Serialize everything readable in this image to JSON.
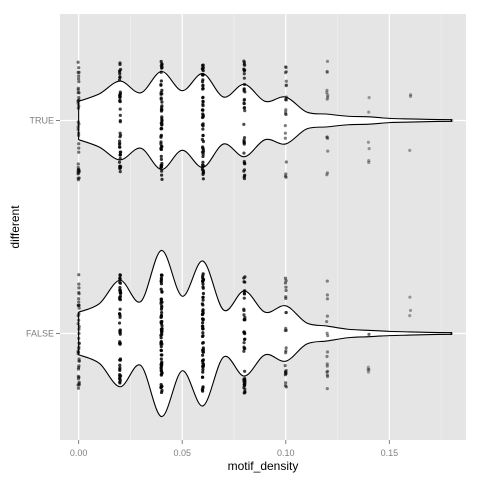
{
  "chart_data": {
    "type": "violin",
    "title": "",
    "xlabel": "motif_density",
    "ylabel": "different",
    "xlim": [
      -0.009,
      0.187
    ],
    "xticks": [
      0.0,
      0.05,
      0.1,
      0.15
    ],
    "xtick_labels": [
      "0.00",
      "0.05",
      "0.10",
      "0.15"
    ],
    "categories": [
      "TRUE",
      "FALSE"
    ],
    "grid": true,
    "colors": {
      "panel": "#e5e5e5",
      "grid_major": "#ffffff",
      "grid_minor": "#f2f2f2",
      "violin_fill": "#ffffff",
      "violin_line": "#000000",
      "point": "#000000"
    },
    "series": [
      {
        "name": "TRUE",
        "points": [
          {
            "x": 0.0,
            "n": 40,
            "spread": 0.56,
            "opacity": 0.55
          },
          {
            "x": 0.02,
            "n": 45,
            "spread": 0.56,
            "opacity": 0.75
          },
          {
            "x": 0.04,
            "n": 55,
            "spread": 0.56,
            "opacity": 0.8
          },
          {
            "x": 0.06,
            "n": 55,
            "spread": 0.56,
            "opacity": 0.8
          },
          {
            "x": 0.08,
            "n": 40,
            "spread": 0.56,
            "opacity": 0.7
          },
          {
            "x": 0.1,
            "n": 22,
            "spread": 0.56,
            "opacity": 0.5
          },
          {
            "x": 0.12,
            "n": 14,
            "spread": 0.56,
            "opacity": 0.4
          },
          {
            "x": 0.14,
            "n": 6,
            "spread": 0.44,
            "opacity": 0.35
          },
          {
            "x": 0.16,
            "n": 3,
            "spread": 0.36,
            "opacity": 0.35
          },
          {
            "x": 0.18,
            "n": 1,
            "spread": 0.18,
            "opacity": 0.35
          }
        ],
        "density": [
          {
            "x": 0.0,
            "w": 0.18
          },
          {
            "x": 0.01,
            "w": 0.25
          },
          {
            "x": 0.02,
            "w": 0.37
          },
          {
            "x": 0.03,
            "w": 0.26
          },
          {
            "x": 0.04,
            "w": 0.46
          },
          {
            "x": 0.05,
            "w": 0.28
          },
          {
            "x": 0.06,
            "w": 0.44
          },
          {
            "x": 0.07,
            "w": 0.22
          },
          {
            "x": 0.08,
            "w": 0.34
          },
          {
            "x": 0.09,
            "w": 0.18
          },
          {
            "x": 0.1,
            "w": 0.22
          },
          {
            "x": 0.11,
            "w": 0.08
          },
          {
            "x": 0.12,
            "w": 0.06
          },
          {
            "x": 0.13,
            "w": 0.04
          },
          {
            "x": 0.14,
            "w": 0.035
          },
          {
            "x": 0.15,
            "w": 0.02
          },
          {
            "x": 0.16,
            "w": 0.015
          },
          {
            "x": 0.17,
            "w": 0.01
          },
          {
            "x": 0.18,
            "w": 0.008
          }
        ]
      },
      {
        "name": "FALSE",
        "points": [
          {
            "x": 0.0,
            "n": 40,
            "spread": 0.56,
            "opacity": 0.55
          },
          {
            "x": 0.02,
            "n": 50,
            "spread": 0.56,
            "opacity": 0.8
          },
          {
            "x": 0.04,
            "n": 70,
            "spread": 0.56,
            "opacity": 0.85
          },
          {
            "x": 0.06,
            "n": 60,
            "spread": 0.56,
            "opacity": 0.85
          },
          {
            "x": 0.08,
            "n": 45,
            "spread": 0.56,
            "opacity": 0.75
          },
          {
            "x": 0.1,
            "n": 25,
            "spread": 0.52,
            "opacity": 0.55
          },
          {
            "x": 0.12,
            "n": 16,
            "spread": 0.52,
            "opacity": 0.45
          },
          {
            "x": 0.14,
            "n": 6,
            "spread": 0.48,
            "opacity": 0.35
          },
          {
            "x": 0.16,
            "n": 3,
            "spread": 0.4,
            "opacity": 0.35
          },
          {
            "x": 0.18,
            "n": 1,
            "spread": 0.44,
            "opacity": 0.35
          }
        ],
        "density": [
          {
            "x": 0.0,
            "w": 0.2
          },
          {
            "x": 0.01,
            "w": 0.28
          },
          {
            "x": 0.02,
            "w": 0.5
          },
          {
            "x": 0.03,
            "w": 0.3
          },
          {
            "x": 0.04,
            "w": 0.78
          },
          {
            "x": 0.05,
            "w": 0.35
          },
          {
            "x": 0.06,
            "w": 0.68
          },
          {
            "x": 0.07,
            "w": 0.22
          },
          {
            "x": 0.08,
            "w": 0.4
          },
          {
            "x": 0.09,
            "w": 0.2
          },
          {
            "x": 0.1,
            "w": 0.26
          },
          {
            "x": 0.11,
            "w": 0.1
          },
          {
            "x": 0.12,
            "w": 0.07
          },
          {
            "x": 0.13,
            "w": 0.04
          },
          {
            "x": 0.14,
            "w": 0.03
          },
          {
            "x": 0.15,
            "w": 0.02
          },
          {
            "x": 0.16,
            "w": 0.015
          },
          {
            "x": 0.17,
            "w": 0.01
          },
          {
            "x": 0.18,
            "w": 0.008
          }
        ]
      }
    ]
  }
}
